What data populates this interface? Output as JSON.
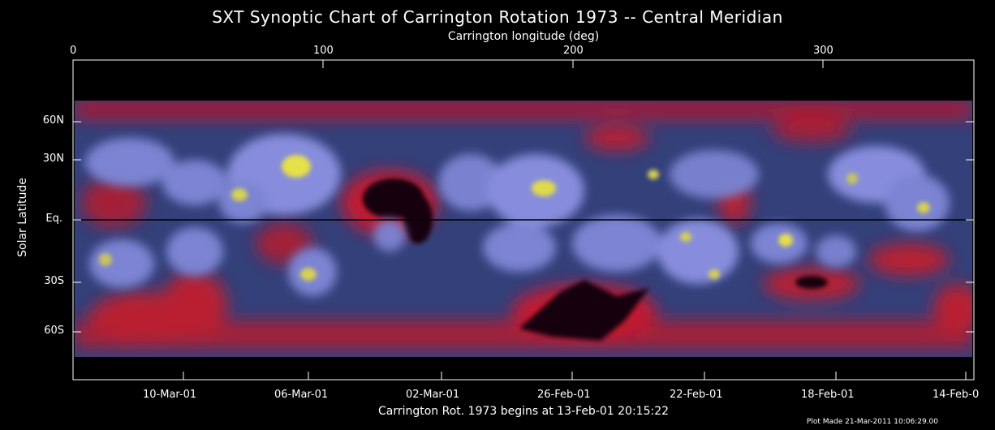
{
  "title": "SXT Synoptic Chart of Carrington Rotation 1973 -- Central Meridian",
  "top_axis": {
    "label": "Carrington longitude (deg)",
    "ticks": [
      "0",
      "100",
      "200",
      "300"
    ]
  },
  "left_axis": {
    "label": "Solar Latitude",
    "ticks": [
      "60N",
      "30N",
      "Eq.",
      "30S",
      "60S"
    ]
  },
  "bottom_axis": {
    "dates": [
      "10-Mar-01",
      "06-Mar-01",
      "02-Mar-01",
      "26-Feb-01",
      "22-Feb-01",
      "18-Feb-01",
      "14-Feb-0"
    ],
    "label": "Carrington Rot. 1973 begins at 13-Feb-01 20:15:22"
  },
  "footer": "Plot Made 21-Mar-2011 10:06:29.00",
  "colors": {
    "background": "#000000",
    "disk_base": "#33407a",
    "bright_region": "#8a8fe0",
    "hot_core": "#e6e04a",
    "coronal_hole": "#d2192a",
    "axis": "#ffffff"
  },
  "chart_data": {
    "type": "heatmap",
    "title": "SXT Synoptic Chart of Carrington Rotation 1973 -- Central Meridian",
    "xlabel": "Carrington longitude (deg)",
    "ylabel": "Solar Latitude",
    "xlim": [
      0,
      360
    ],
    "ylim": [
      -90,
      90
    ],
    "x_ticks": [
      0,
      100,
      200,
      300
    ],
    "y_ticks": [
      "60N",
      "30N",
      "Eq.",
      "30S",
      "60S"
    ],
    "bottom_dates": [
      "10-Mar-01",
      "06-Mar-01",
      "02-Mar-01",
      "26-Feb-01",
      "22-Feb-01",
      "18-Feb-01",
      "14-Feb-0"
    ],
    "equator_line": true
  }
}
